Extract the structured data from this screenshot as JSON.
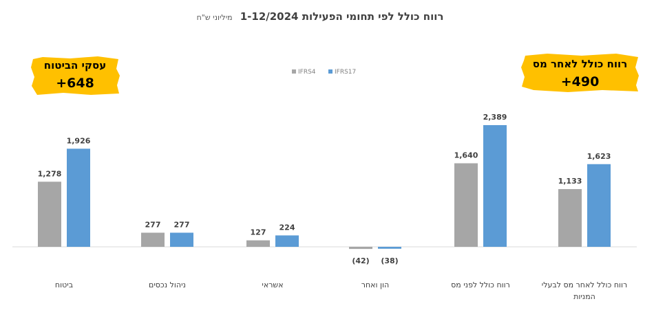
{
  "header": {
    "title": "רווח כולל לפי תחומי הפעילות 1-12/2024",
    "subtitle": "מיליוני ש\"ח"
  },
  "callouts": {
    "left": {
      "label": "עסקי הביטוח",
      "value": "+648"
    },
    "right": {
      "label": "רווח כולל לאחר מס",
      "value": "+490"
    }
  },
  "colors": {
    "IFRS4": "#a6a6a6",
    "IFRS17": "#5b9bd5",
    "highlight": "#ffc000",
    "label_text": "#404040",
    "axis_line": "#d9d9d9"
  },
  "chart_data": {
    "type": "bar",
    "title": "רווח כולל לפי תחומי הפעילות 1-12/2024",
    "subtitle": "מיליוני ש\"ח",
    "xlabel": "",
    "ylabel": "",
    "legend_position": "top-center",
    "grid": false,
    "ylim": [
      -100,
      2700
    ],
    "categories": [
      [
        "ביטוח"
      ],
      [
        "ניהול נכסים"
      ],
      [
        "אשראי"
      ],
      [
        "הון ואחר"
      ],
      [
        "רווח כולל לפני מס"
      ],
      [
        "רווח כולל לאחר מס לבעלי",
        "המניות"
      ]
    ],
    "series": [
      {
        "name": "IFRS4",
        "values": [
          1278,
          277,
          127,
          -42,
          1640,
          1133
        ],
        "labels": [
          "1,278",
          "277",
          "127",
          "(42)",
          "1,640",
          "1,133"
        ]
      },
      {
        "name": "IFRS17",
        "values": [
          1926,
          277,
          224,
          -38,
          2389,
          1623
        ],
        "labels": [
          "1,926",
          "277",
          "224",
          "(38)",
          "2,389",
          "1,623"
        ]
      }
    ]
  }
}
